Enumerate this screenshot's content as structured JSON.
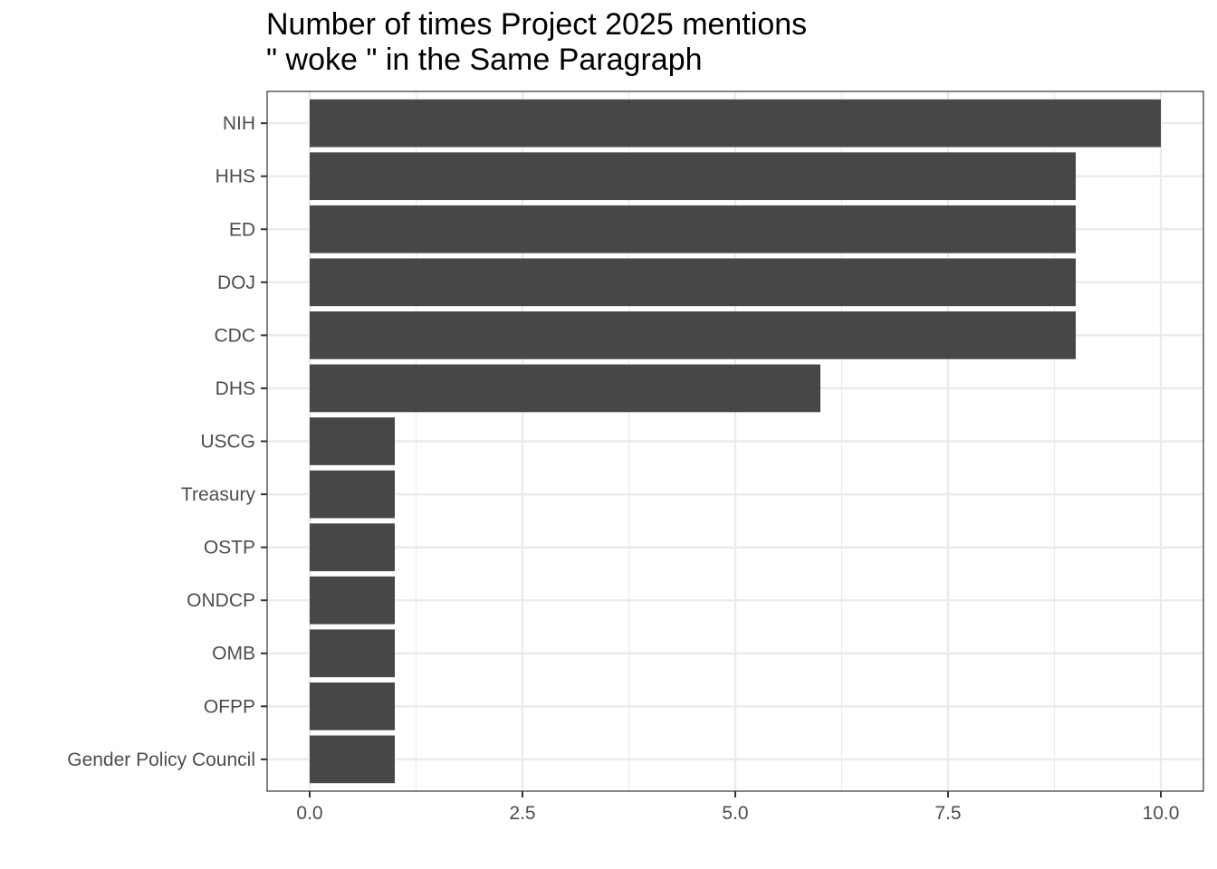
{
  "chart_data": {
    "type": "bar",
    "orientation": "horizontal",
    "title_lines": [
      "Number of times Project 2025 mentions",
      "\" woke \" in the Same Paragraph"
    ],
    "xlabel": "",
    "ylabel": "",
    "categories": [
      "NIH",
      "HHS",
      "ED",
      "DOJ",
      "CDC",
      "DHS",
      "USCG",
      "Treasury",
      "OSTP",
      "ONDCP",
      "OMB",
      "OFPP",
      "Gender Policy Council"
    ],
    "values": [
      10,
      9,
      9,
      9,
      9,
      6,
      1,
      1,
      1,
      1,
      1,
      1,
      1
    ],
    "xlim": [
      -0.5,
      10.5
    ],
    "x_ticks": [
      0.0,
      2.5,
      5.0,
      7.5,
      10.0
    ],
    "x_tick_labels": [
      "0.0",
      "2.5",
      "5.0",
      "7.5",
      "10.0"
    ],
    "grid": true,
    "colors": {
      "bar": "#474747",
      "grid": "#ebebeb",
      "panel_border": "#333333",
      "axis_text": "#4d4d4d"
    }
  }
}
